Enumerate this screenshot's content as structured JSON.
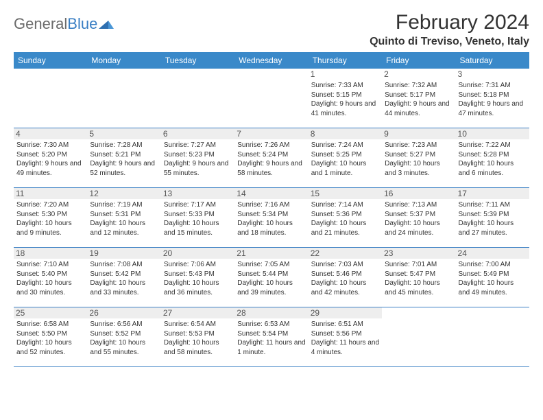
{
  "logo": {
    "text_gray": "General",
    "text_blue": "Blue"
  },
  "title": "February 2024",
  "location": "Quinto di Treviso, Veneto, Italy",
  "colors": {
    "header_bg": "#3a89c9",
    "header_text": "#ffffff",
    "row_divider": "#3a7fc4",
    "daynum_bg": "#eeeeee",
    "body_text": "#333333",
    "logo_gray": "#6b6b6b",
    "logo_blue": "#3a7fc4"
  },
  "weekdays": [
    "Sunday",
    "Monday",
    "Tuesday",
    "Wednesday",
    "Thursday",
    "Friday",
    "Saturday"
  ],
  "weeks": [
    [
      null,
      null,
      null,
      null,
      {
        "n": "1",
        "sunrise": "7:33 AM",
        "sunset": "5:15 PM",
        "daylight": "9 hours and 41 minutes."
      },
      {
        "n": "2",
        "sunrise": "7:32 AM",
        "sunset": "5:17 PM",
        "daylight": "9 hours and 44 minutes."
      },
      {
        "n": "3",
        "sunrise": "7:31 AM",
        "sunset": "5:18 PM",
        "daylight": "9 hours and 47 minutes."
      }
    ],
    [
      {
        "n": "4",
        "sunrise": "7:30 AM",
        "sunset": "5:20 PM",
        "daylight": "9 hours and 49 minutes."
      },
      {
        "n": "5",
        "sunrise": "7:28 AM",
        "sunset": "5:21 PM",
        "daylight": "9 hours and 52 minutes."
      },
      {
        "n": "6",
        "sunrise": "7:27 AM",
        "sunset": "5:23 PM",
        "daylight": "9 hours and 55 minutes."
      },
      {
        "n": "7",
        "sunrise": "7:26 AM",
        "sunset": "5:24 PM",
        "daylight": "9 hours and 58 minutes."
      },
      {
        "n": "8",
        "sunrise": "7:24 AM",
        "sunset": "5:25 PM",
        "daylight": "10 hours and 1 minute."
      },
      {
        "n": "9",
        "sunrise": "7:23 AM",
        "sunset": "5:27 PM",
        "daylight": "10 hours and 3 minutes."
      },
      {
        "n": "10",
        "sunrise": "7:22 AM",
        "sunset": "5:28 PM",
        "daylight": "10 hours and 6 minutes."
      }
    ],
    [
      {
        "n": "11",
        "sunrise": "7:20 AM",
        "sunset": "5:30 PM",
        "daylight": "10 hours and 9 minutes."
      },
      {
        "n": "12",
        "sunrise": "7:19 AM",
        "sunset": "5:31 PM",
        "daylight": "10 hours and 12 minutes."
      },
      {
        "n": "13",
        "sunrise": "7:17 AM",
        "sunset": "5:33 PM",
        "daylight": "10 hours and 15 minutes."
      },
      {
        "n": "14",
        "sunrise": "7:16 AM",
        "sunset": "5:34 PM",
        "daylight": "10 hours and 18 minutes."
      },
      {
        "n": "15",
        "sunrise": "7:14 AM",
        "sunset": "5:36 PM",
        "daylight": "10 hours and 21 minutes."
      },
      {
        "n": "16",
        "sunrise": "7:13 AM",
        "sunset": "5:37 PM",
        "daylight": "10 hours and 24 minutes."
      },
      {
        "n": "17",
        "sunrise": "7:11 AM",
        "sunset": "5:39 PM",
        "daylight": "10 hours and 27 minutes."
      }
    ],
    [
      {
        "n": "18",
        "sunrise": "7:10 AM",
        "sunset": "5:40 PM",
        "daylight": "10 hours and 30 minutes."
      },
      {
        "n": "19",
        "sunrise": "7:08 AM",
        "sunset": "5:42 PM",
        "daylight": "10 hours and 33 minutes."
      },
      {
        "n": "20",
        "sunrise": "7:06 AM",
        "sunset": "5:43 PM",
        "daylight": "10 hours and 36 minutes."
      },
      {
        "n": "21",
        "sunrise": "7:05 AM",
        "sunset": "5:44 PM",
        "daylight": "10 hours and 39 minutes."
      },
      {
        "n": "22",
        "sunrise": "7:03 AM",
        "sunset": "5:46 PM",
        "daylight": "10 hours and 42 minutes."
      },
      {
        "n": "23",
        "sunrise": "7:01 AM",
        "sunset": "5:47 PM",
        "daylight": "10 hours and 45 minutes."
      },
      {
        "n": "24",
        "sunrise": "7:00 AM",
        "sunset": "5:49 PM",
        "daylight": "10 hours and 49 minutes."
      }
    ],
    [
      {
        "n": "25",
        "sunrise": "6:58 AM",
        "sunset": "5:50 PM",
        "daylight": "10 hours and 52 minutes."
      },
      {
        "n": "26",
        "sunrise": "6:56 AM",
        "sunset": "5:52 PM",
        "daylight": "10 hours and 55 minutes."
      },
      {
        "n": "27",
        "sunrise": "6:54 AM",
        "sunset": "5:53 PM",
        "daylight": "10 hours and 58 minutes."
      },
      {
        "n": "28",
        "sunrise": "6:53 AM",
        "sunset": "5:54 PM",
        "daylight": "11 hours and 1 minute."
      },
      {
        "n": "29",
        "sunrise": "6:51 AM",
        "sunset": "5:56 PM",
        "daylight": "11 hours and 4 minutes."
      },
      null,
      null
    ]
  ],
  "labels": {
    "sunrise": "Sunrise:",
    "sunset": "Sunset:",
    "daylight": "Daylight:"
  }
}
